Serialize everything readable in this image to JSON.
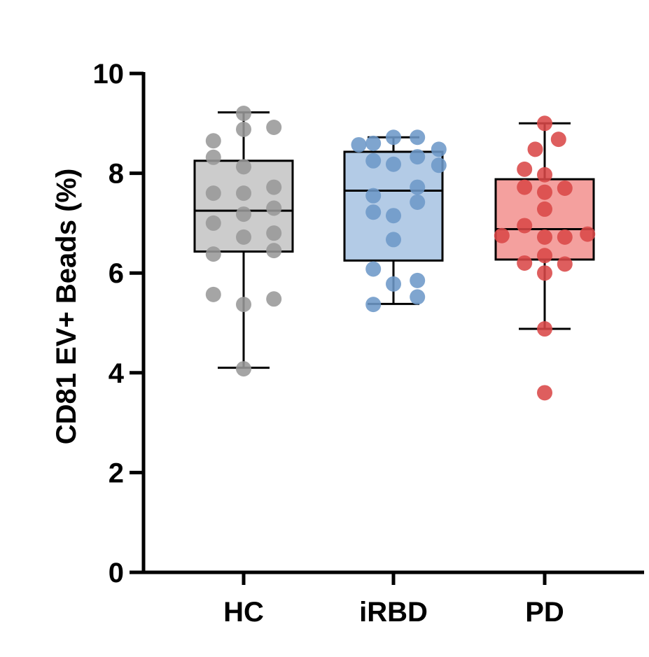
{
  "chart_data": {
    "type": "box",
    "ylabel": "CD81 EV+ Beads (%)",
    "xlabel": "",
    "ylim": [
      0,
      10
    ],
    "yticks": [
      0,
      2,
      4,
      6,
      8,
      10
    ],
    "categories": [
      "HC",
      "iRBD",
      "PD"
    ],
    "series": [
      {
        "name": "HC",
        "fill": "#cccccc",
        "point_color": "#999999",
        "whisker_low": 4.1,
        "q1": 6.43,
        "median": 7.25,
        "q3": 8.25,
        "whisker_high": 9.22,
        "points": [
          [
            -0.48,
            8.65
          ],
          [
            -0.48,
            8.32
          ],
          [
            -0.48,
            7.6
          ],
          [
            -0.48,
            7.0
          ],
          [
            -0.48,
            6.38
          ],
          [
            -0.48,
            5.57
          ],
          [
            0.0,
            9.2
          ],
          [
            0.0,
            8.88
          ],
          [
            0.0,
            8.13
          ],
          [
            0.0,
            7.6
          ],
          [
            0.0,
            7.18
          ],
          [
            0.0,
            6.72
          ],
          [
            0.0,
            5.37
          ],
          [
            0.0,
            4.08
          ],
          [
            0.48,
            8.92
          ],
          [
            0.48,
            7.72
          ],
          [
            0.48,
            7.3
          ],
          [
            0.48,
            6.8
          ],
          [
            0.48,
            6.45
          ],
          [
            0.48,
            5.48
          ]
        ]
      },
      {
        "name": "iRBD",
        "fill": "#b3cbe6",
        "point_color": "#6d99c8",
        "whisker_low": 5.38,
        "q1": 6.25,
        "median": 7.65,
        "q3": 8.43,
        "whisker_high": 8.72,
        "points": [
          [
            -0.32,
            8.6
          ],
          [
            -0.32,
            8.25
          ],
          [
            -0.55,
            8.57
          ],
          [
            -0.32,
            7.55
          ],
          [
            -0.32,
            7.22
          ],
          [
            -0.32,
            6.08
          ],
          [
            -0.32,
            5.37
          ],
          [
            0.0,
            8.72
          ],
          [
            0.0,
            8.18
          ],
          [
            0.0,
            7.15
          ],
          [
            0.0,
            6.67
          ],
          [
            0.0,
            5.78
          ],
          [
            0.38,
            8.72
          ],
          [
            0.38,
            8.33
          ],
          [
            0.38,
            7.72
          ],
          [
            0.38,
            7.42
          ],
          [
            0.38,
            5.85
          ],
          [
            0.38,
            5.52
          ],
          [
            0.72,
            8.48
          ],
          [
            0.72,
            8.16
          ]
        ]
      },
      {
        "name": "PD",
        "fill": "#f4a09e",
        "point_color": "#d94848",
        "whisker_low": 4.88,
        "q1": 6.27,
        "median": 6.88,
        "q3": 7.88,
        "whisker_high": 9.0,
        "points": [
          [
            -0.68,
            6.75
          ],
          [
            -0.32,
            8.08
          ],
          [
            -0.32,
            7.72
          ],
          [
            -0.32,
            6.95
          ],
          [
            -0.32,
            6.2
          ],
          [
            -0.15,
            8.48
          ],
          [
            0.0,
            9.0
          ],
          [
            0.0,
            7.97
          ],
          [
            0.0,
            7.62
          ],
          [
            0.0,
            7.28
          ],
          [
            0.0,
            6.72
          ],
          [
            0.0,
            6.35
          ],
          [
            0.0,
            6.0
          ],
          [
            0.0,
            4.88
          ],
          [
            0.0,
            3.6
          ],
          [
            0.22,
            8.68
          ],
          [
            0.32,
            7.7
          ],
          [
            0.32,
            6.72
          ],
          [
            0.32,
            6.18
          ],
          [
            0.68,
            6.78
          ]
        ]
      }
    ]
  }
}
